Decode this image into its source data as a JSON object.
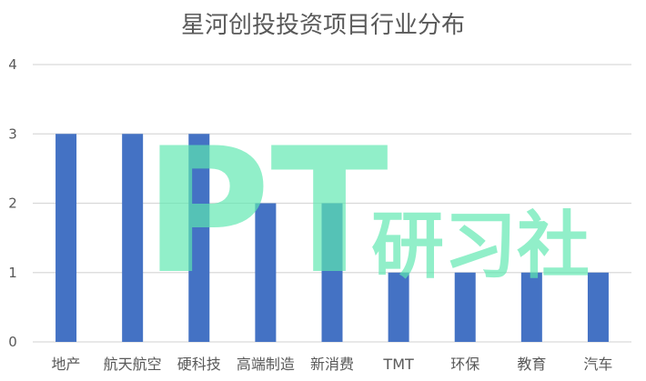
{
  "chart_data": {
    "type": "bar",
    "title": "星河创投投资项目行业分布",
    "categories": [
      "地产",
      "航天航空",
      "硬科技",
      "高端制造",
      "新消费",
      "TMT",
      "环保",
      "教育",
      "汽车"
    ],
    "values": [
      3,
      3,
      3,
      2,
      2,
      1,
      1,
      1,
      1
    ],
    "ylim": [
      0,
      4
    ],
    "yticks": [
      0,
      1,
      2,
      3,
      4
    ],
    "grid": true,
    "legend": "none",
    "xlabel": "",
    "ylabel": "",
    "bar_color": "#4472c4"
  },
  "watermark": {
    "big_text": "PT",
    "small_text": "研习社",
    "color": "#5ee8b0"
  }
}
